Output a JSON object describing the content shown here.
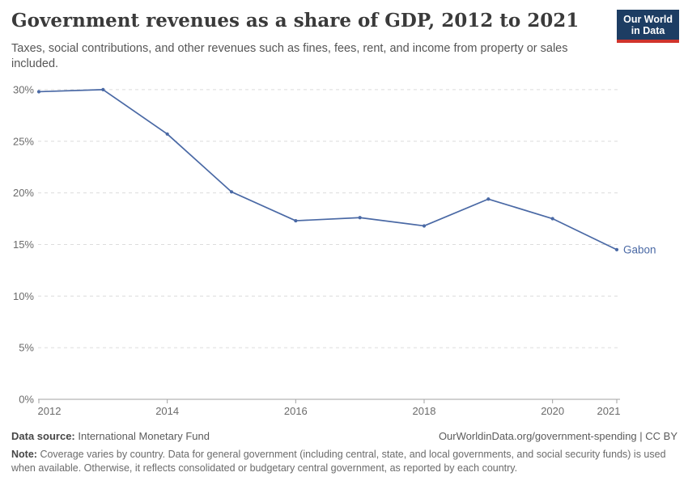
{
  "header": {
    "title": "Government revenues as a share of GDP, 2012 to 2021",
    "subtitle": "Taxes, social contributions, and other revenues such as fines, fees, rent, and income from property or sales included.",
    "logo": {
      "line1": "Our World",
      "line2": "in Data"
    }
  },
  "colors": {
    "series_blue": "#4a69a5",
    "logo_bg": "#1d3d63",
    "logo_accent": "#d0342c",
    "grid": "#dcdcdc",
    "axis": "#a3a3a3",
    "tick_label": "#6b6b6b"
  },
  "chart_data": {
    "type": "line",
    "title": "Government revenues as a share of GDP, 2012 to 2021",
    "x": [
      2012,
      2013,
      2014,
      2015,
      2016,
      2017,
      2018,
      2019,
      2020,
      2021
    ],
    "series": [
      {
        "name": "Gabon",
        "color": "#4a69a5",
        "values": [
          29.8,
          30.0,
          25.7,
          20.1,
          17.3,
          17.6,
          16.8,
          19.4,
          17.5,
          14.5
        ]
      }
    ],
    "xlim": [
      2012,
      2021
    ],
    "ylim": [
      0,
      30
    ],
    "x_ticks": [
      2012,
      2014,
      2016,
      2018,
      2020,
      2021
    ],
    "y_ticks": [
      0,
      5,
      10,
      15,
      20,
      25,
      30
    ],
    "y_tick_format": "{v}%",
    "xlabel": "",
    "ylabel": "",
    "grid": "horizontal-dashed",
    "legend": "end-of-line-label"
  },
  "footer": {
    "source_label": "Data source:",
    "source_value": "International Monetary Fund",
    "credit": "OurWorldinData.org/government-spending | CC BY",
    "note_label": "Note:",
    "note_value": "Coverage varies by country. Data for general government (including central, state, and local governments, and social security funds) is used when available. Otherwise, it reflects consolidated or budgetary central government, as reported by each country."
  }
}
